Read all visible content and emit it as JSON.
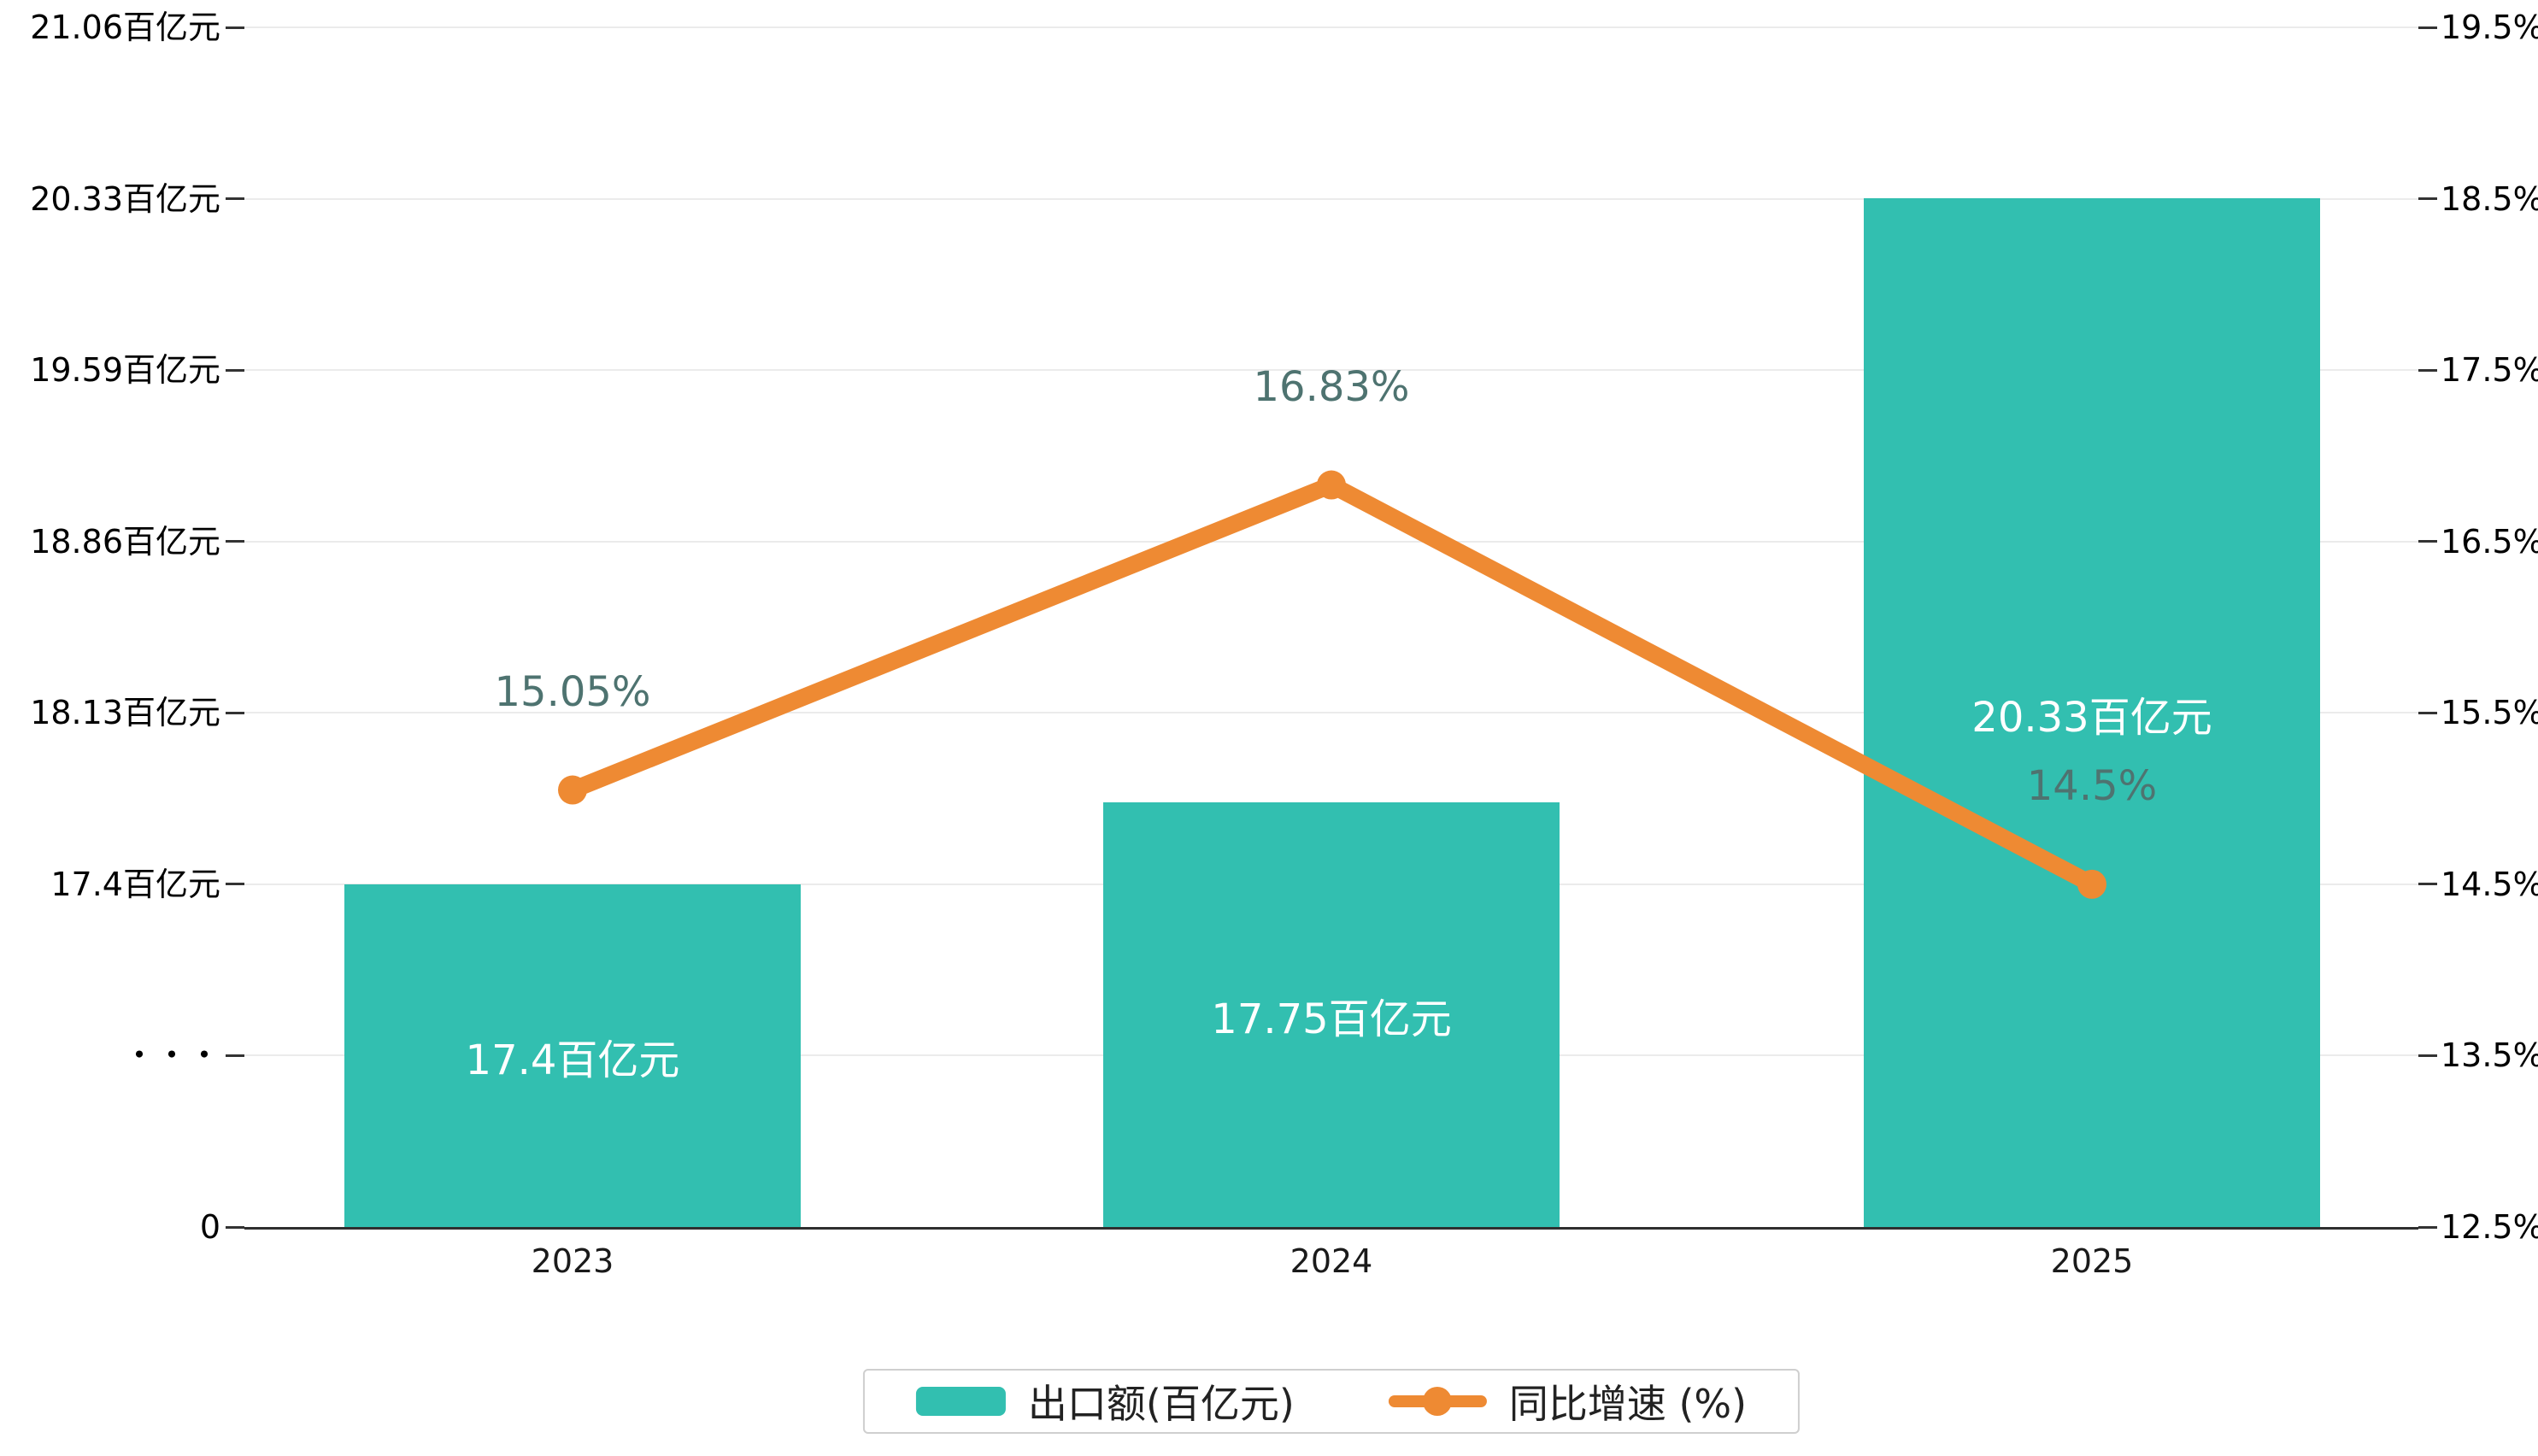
{
  "chart_data": {
    "type": "bar",
    "combo": "bar+line dual-axis",
    "categories": [
      "2023",
      "2024",
      "2025"
    ],
    "series": [
      {
        "name": "出口额(百亿元)",
        "type": "bar",
        "axis": "left",
        "values": [
          17.4,
          17.75,
          20.33
        ],
        "labels": [
          "17.4百亿元",
          "17.75百亿元",
          "20.33百亿元"
        ],
        "color": "#32bfb0",
        "label_color": "#ffffff"
      },
      {
        "name": "同比增速 (%)",
        "type": "line",
        "axis": "right",
        "values": [
          15.05,
          16.83,
          14.5
        ],
        "labels": [
          "15.05%",
          "16.83%",
          "14.5%"
        ],
        "color": "#ee8a33",
        "label_color": "#4e7370"
      }
    ],
    "left_axis": {
      "ticks": [
        "21.06百亿元",
        "20.33百亿元",
        "19.59百亿元",
        "18.86百亿元",
        "18.13百亿元",
        "17.4百亿元",
        "・・・",
        "0"
      ],
      "break_index": 6
    },
    "right_axis": {
      "ticks": [
        "19.5%",
        "18.5%",
        "17.5%",
        "16.5%",
        "15.5%",
        "14.5%",
        "13.5%",
        "12.5%"
      ],
      "min": 12.5,
      "max": 19.5
    },
    "legend": {
      "items": [
        "出口额(百亿元)",
        "同比增速 (%)"
      ],
      "position": "bottom"
    },
    "grid": true,
    "background": "#ffffff",
    "title": ""
  }
}
